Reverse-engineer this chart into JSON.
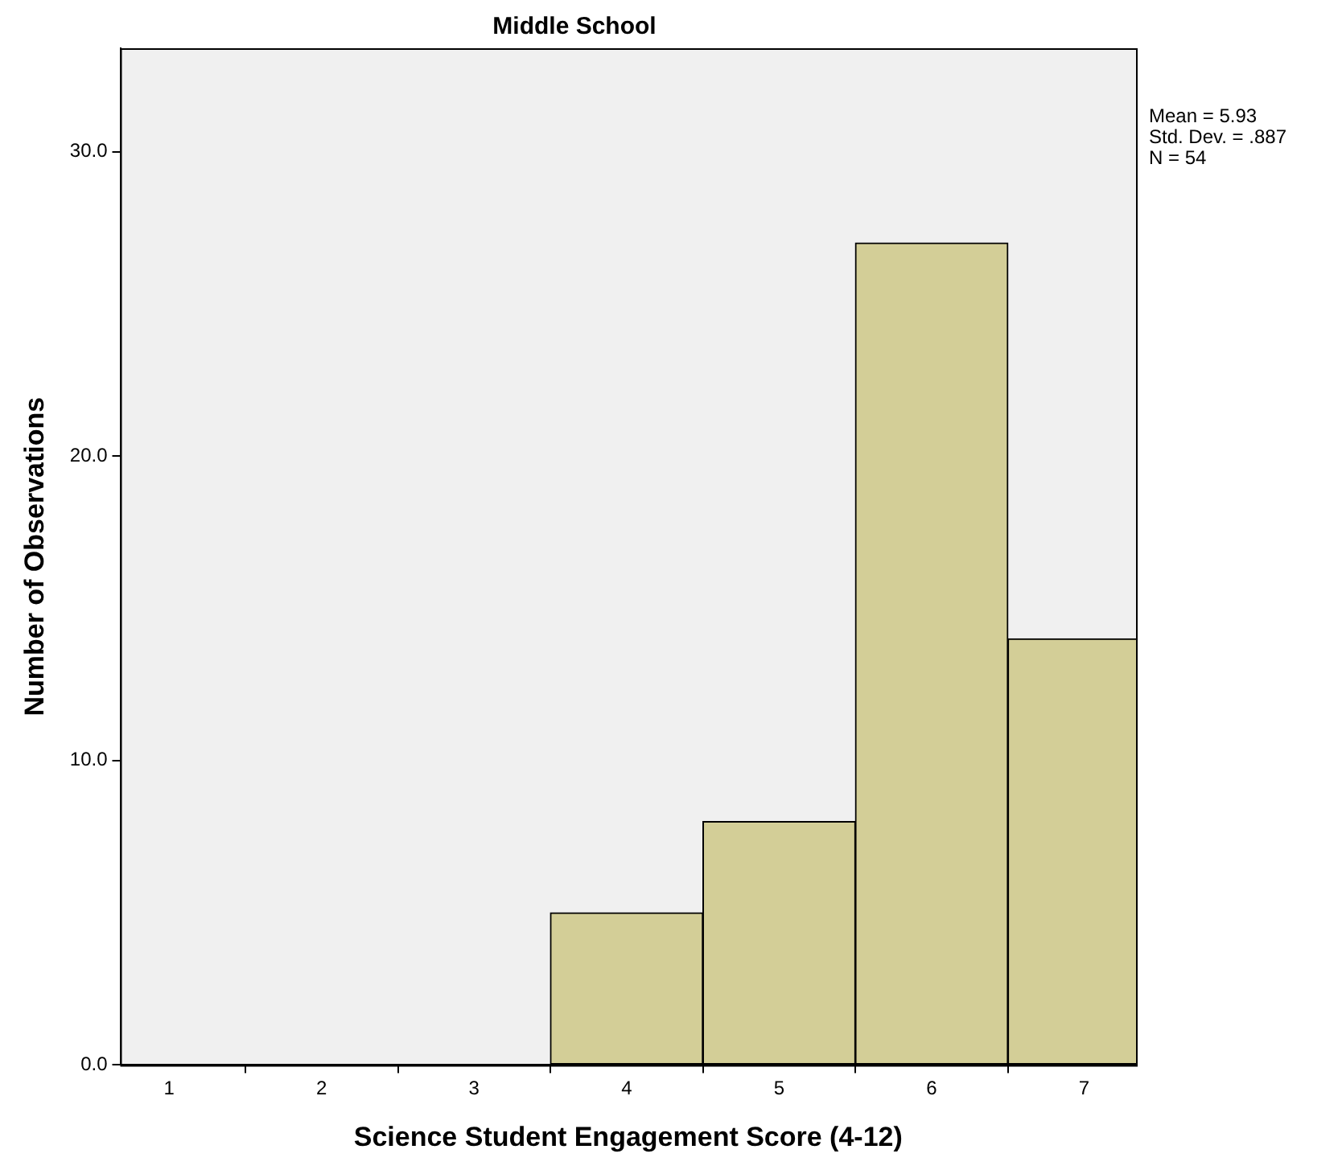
{
  "chart_data": {
    "type": "histogram",
    "title": "Middle School",
    "xlabel": "Science Student Engagement Score (4-12)",
    "ylabel": "Number of Observations",
    "bins": [
      3.5,
      4.5,
      5.5,
      6.5,
      7.5
    ],
    "values": [
      5,
      8,
      27,
      14
    ],
    "color": "#d3ce97",
    "xlim": [
      0.68,
      7.34
    ],
    "xticks": [
      1,
      2,
      3,
      4,
      5,
      6,
      7
    ],
    "ylim": [
      0,
      33.4
    ],
    "yticks": [
      {
        "value": 0,
        "label": "0.0"
      },
      {
        "value": 10,
        "label": "10.0"
      },
      {
        "value": 20,
        "label": "20.0"
      },
      {
        "value": 30,
        "label": "30.0"
      }
    ],
    "grid": false,
    "legend": false,
    "annotations": [
      "Mean = 5.93",
      "Std. Dev. = .887",
      "N = 54"
    ]
  }
}
